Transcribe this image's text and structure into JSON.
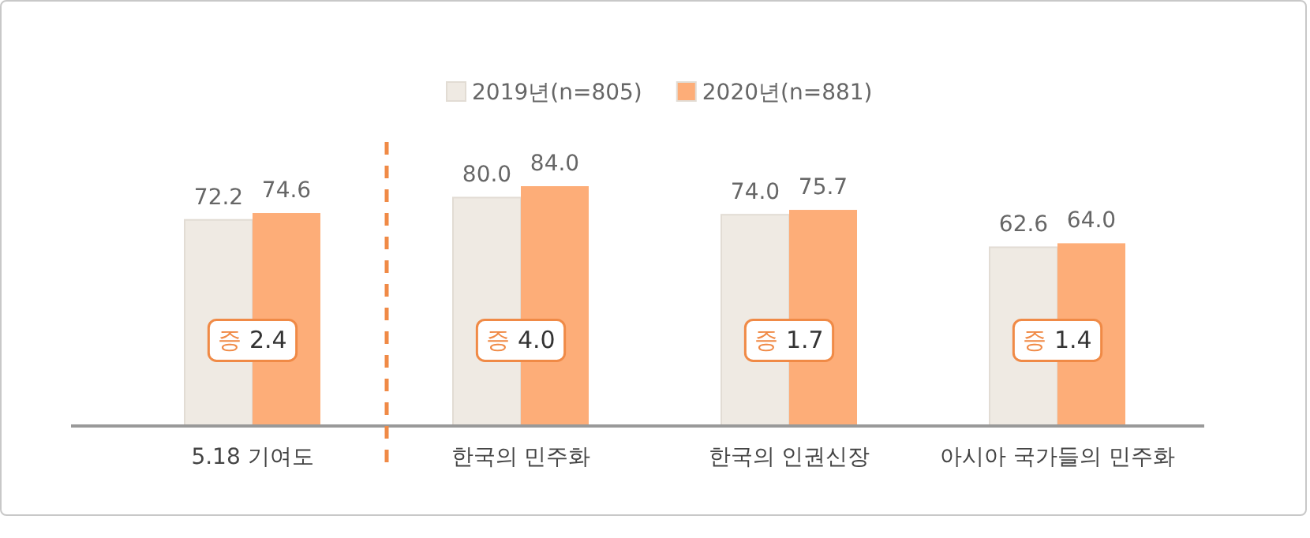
{
  "chart_data": {
    "type": "bar",
    "categories": [
      "5.18 기여도",
      "한국의 민주화",
      "한국의 인권신장",
      "아시아 국가들의 민주화"
    ],
    "series": [
      {
        "name": "2019년(n=805)",
        "color": "#efeae3",
        "values": [
          72.2,
          80.0,
          74.0,
          62.6
        ],
        "value_labels": [
          "72.2",
          "80.0",
          "74.0",
          "62.6"
        ]
      },
      {
        "name": "2020년(n=881)",
        "color": "#fdad78",
        "values": [
          74.6,
          84.0,
          75.7,
          64.0
        ],
        "value_labels": [
          "74.6",
          "84.0",
          "75.7",
          "64.0"
        ]
      }
    ],
    "legend": "top",
    "annotations": [
      {
        "text": "증 2.4",
        "x": "5.18 기여도",
        "y": 30
      },
      {
        "text": "증 4.0",
        "x": "한국의 민주화",
        "y": 30
      },
      {
        "text": "증 1.7",
        "x": "한국의 인권신장",
        "y": 30
      },
      {
        "text": "증 1.4",
        "x": "아시아 국가들의 민주화",
        "y": 30
      }
    ]
  }
}
